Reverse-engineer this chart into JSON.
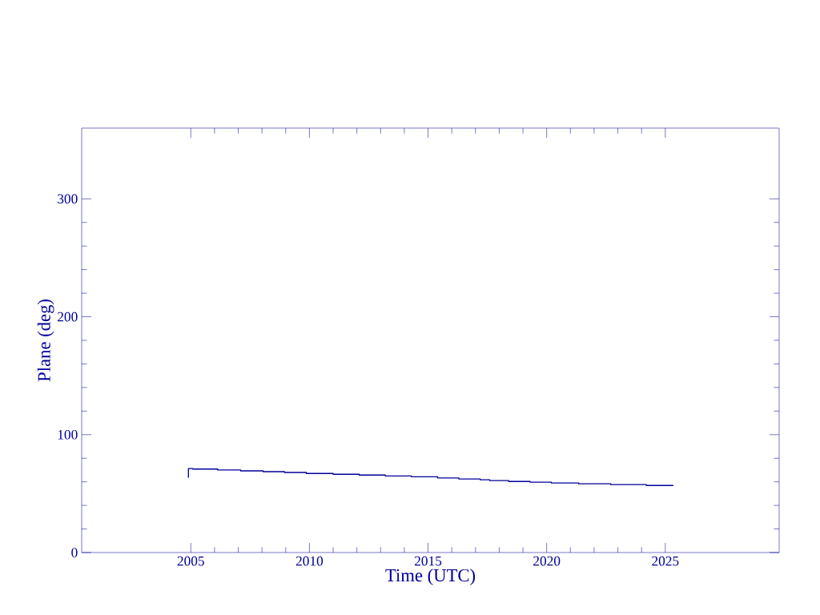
{
  "chart_data": {
    "type": "step",
    "xlabel": "Time (UTC)",
    "ylabel": "Plane (deg)",
    "x": [
      2004.9,
      2004.9,
      2005.08,
      2006.13,
      2007.1,
      2008.05,
      2008.95,
      2009.87,
      2011.0,
      2012.1,
      2013.2,
      2014.3,
      2015.4,
      2016.3,
      2017.2,
      2017.6,
      2018.4,
      2019.3,
      2020.2,
      2021.35,
      2022.7,
      2024.2,
      2025.34
    ],
    "values": [
      63.5,
      71.2,
      70.8,
      70.1,
      69.3,
      68.6,
      67.9,
      67.1,
      66.4,
      65.7,
      65.0,
      64.3,
      63.3,
      62.4,
      61.7,
      61.0,
      60.3,
      59.7,
      59.0,
      58.3,
      57.6,
      56.9,
      56.9
    ],
    "color": "#000099",
    "xlim": [
      2000.4,
      2029.8
    ],
    "xticks": [
      2005,
      2010,
      2015,
      2020,
      2025
    ],
    "ylim": [
      0,
      360
    ],
    "yticks": [
      0,
      100,
      200,
      300
    ],
    "marker": "none",
    "line_style": "solid"
  }
}
